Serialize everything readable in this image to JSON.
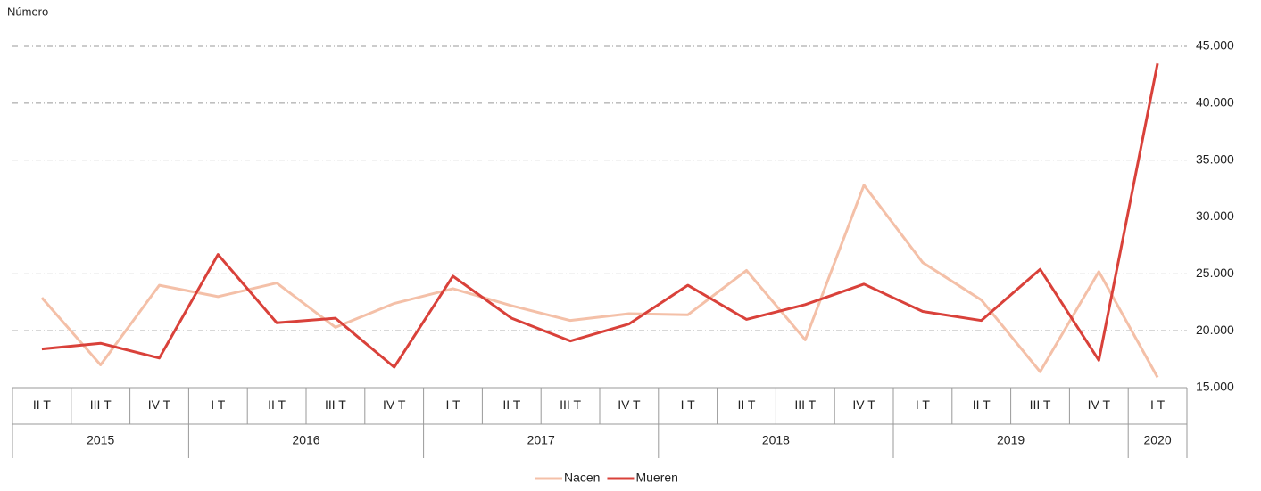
{
  "chart_data": {
    "type": "line",
    "y_label": "Número",
    "categories": [
      "II T",
      "III T",
      "IV T",
      "I T",
      "II T",
      "III T",
      "IV T",
      "I T",
      "II T",
      "III T",
      "IV T",
      "I T",
      "II T",
      "III T",
      "IV T",
      "I T",
      "II T",
      "III T",
      "IV T",
      "I T"
    ],
    "years": [
      "2015",
      null,
      null,
      "2016",
      null,
      null,
      null,
      "2017",
      null,
      null,
      null,
      "2018",
      null,
      null,
      null,
      "2019",
      null,
      null,
      null,
      "2020"
    ],
    "series": [
      {
        "name": "Nacen",
        "color": "#f4c0a8",
        "values": [
          22900,
          17000,
          24000,
          23000,
          24200,
          20300,
          22400,
          23700,
          22200,
          20900,
          21500,
          21400,
          25300,
          19200,
          32800,
          26000,
          22700,
          16400,
          25200,
          15900
        ]
      },
      {
        "name": "Mueren",
        "color": "#d9413a",
        "values": [
          18400,
          18900,
          17600,
          26700,
          20700,
          21100,
          16800,
          24800,
          21100,
          19100,
          20600,
          24000,
          21000,
          22300,
          24100,
          21700,
          20900,
          25400,
          17400,
          43500
        ]
      }
    ],
    "ylim": [
      15000,
      45000
    ],
    "yticks": [
      {
        "value": 15000,
        "label": "15.000"
      },
      {
        "value": 20000,
        "label": "20.000"
      },
      {
        "value": 25000,
        "label": "25.000"
      },
      {
        "value": 30000,
        "label": "30.000"
      },
      {
        "value": 35000,
        "label": "35.000"
      },
      {
        "value": 40000,
        "label": "40.000"
      },
      {
        "value": 45000,
        "label": "45.000"
      }
    ],
    "grid": true,
    "legend": "bottom"
  }
}
